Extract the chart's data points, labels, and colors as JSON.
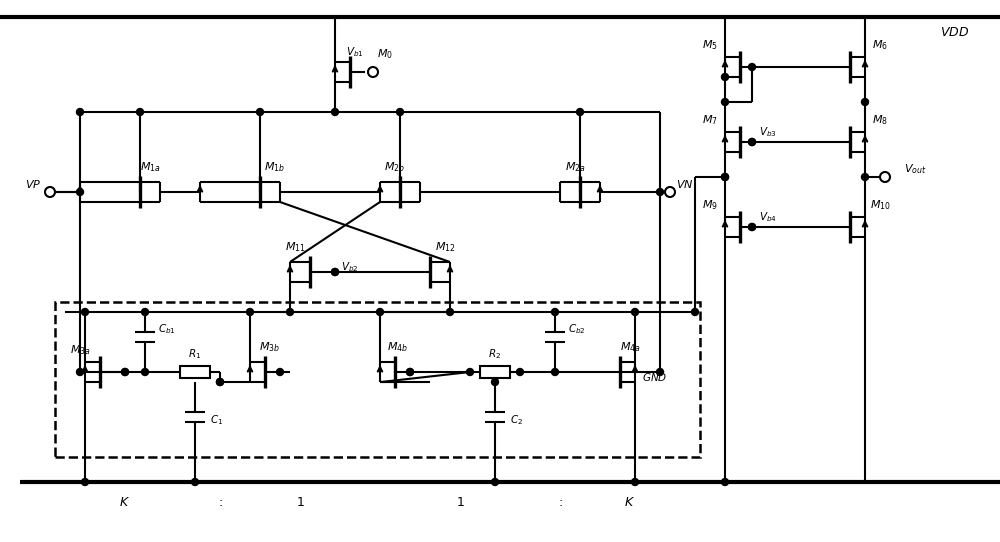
{
  "bg_color": "#ffffff",
  "line_color": "#000000",
  "lw": 1.5,
  "lw_thick": 3.0,
  "figsize": [
    10.0,
    5.42
  ],
  "dpi": 100
}
